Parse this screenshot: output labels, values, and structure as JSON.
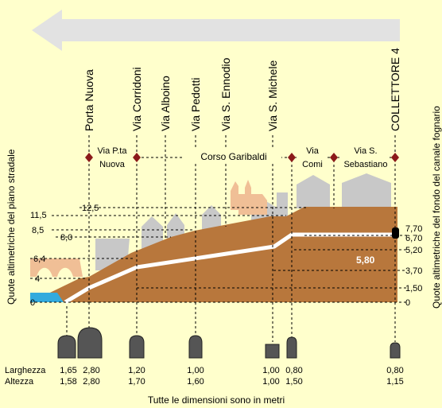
{
  "colors": {
    "background": "#ffffcc",
    "ground": "#b8773c",
    "pipe_line": "#ffffff",
    "water": "#33aadd",
    "buildings": "#c8c8c8",
    "church": "#f0bf96",
    "bridge": "#f0bf96",
    "marker": "#8b1a1a",
    "arrow": "#e2e2e2",
    "culvert": "#555555"
  },
  "direction_arrow_icon": "left-arrow-icon",
  "left_axis": {
    "title": "Quote altimetriche del piano stradale",
    "ticks": [
      "0",
      "4",
      "6,4",
      "8,0",
      "8,5",
      "11,5",
      "12,5"
    ]
  },
  "right_axis": {
    "title": "Quote altimetriche del fondo del canale fognario",
    "ticks": [
      "0",
      "1,50",
      "3,70",
      "5,20",
      "6,70",
      "7,70"
    ]
  },
  "pipe_label": "5,80",
  "locations": [
    {
      "name": "Porta Nuova"
    },
    {
      "name": "Via Corridoni"
    },
    {
      "name": "Via Alboino"
    },
    {
      "name": "Via Pedotti"
    },
    {
      "name": "Via S. Ennodio"
    },
    {
      "name": "Via S. Michele"
    },
    {
      "name": "COLLETTORE 4"
    }
  ],
  "streets": [
    {
      "line1": "Via P.ta",
      "line2": "Nuova"
    },
    {
      "line1": "Corso Garibaldi",
      "line2": ""
    },
    {
      "line1": "Via",
      "line2": "Comi"
    },
    {
      "line1": "Via S.",
      "line2": "Sebastiano"
    }
  ],
  "dimensions": {
    "width_label": "Larghezza",
    "height_label": "Altezza",
    "columns": [
      {
        "width": "1,65",
        "height": "1,58"
      },
      {
        "width": "2,80",
        "height": "2,80"
      },
      {
        "width": "1,20",
        "height": "1,70"
      },
      {
        "width": "1,00",
        "height": "1,60"
      },
      {
        "width": "1,00",
        "height": "1,00"
      },
      {
        "width": "0,80",
        "height": "1,50"
      },
      {
        "width": "0,80",
        "height": "1,15"
      }
    ]
  },
  "footer": "Tutte le dimensioni sono in metri"
}
